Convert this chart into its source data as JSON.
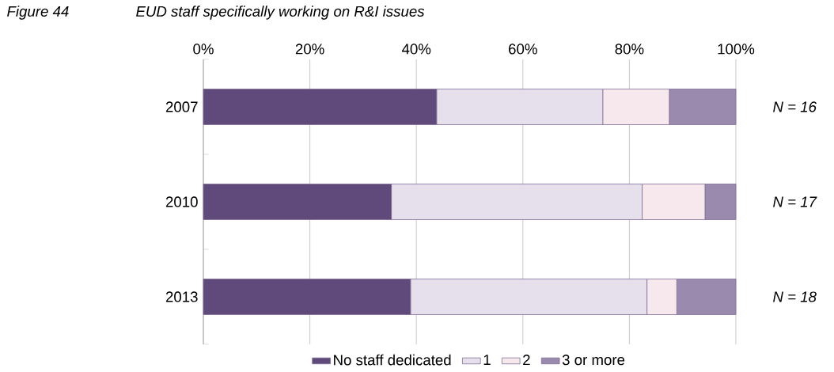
{
  "chart_data": {
    "type": "bar",
    "orientation": "horizontal",
    "stacked": true,
    "title": "Figure 44",
    "subtitle": "EUD staff specifically working on R&I issues",
    "categories": [
      "2007",
      "2010",
      "2013"
    ],
    "series": [
      {
        "name": "No staff dedicated",
        "color": "#604a7b",
        "values": [
          43.8,
          35.3,
          38.9
        ]
      },
      {
        "name": "1",
        "color": "#e6e0ec",
        "values": [
          31.2,
          47.1,
          44.4
        ]
      },
      {
        "name": "2",
        "color": "#f6e8ec",
        "values": [
          12.5,
          11.8,
          5.6
        ]
      },
      {
        "name": "3 or more",
        "color": "#9a8aae",
        "values": [
          12.5,
          5.8,
          11.1
        ]
      }
    ],
    "xlim": [
      0,
      100
    ],
    "xticks": [
      {
        "value": 0,
        "label": "0%"
      },
      {
        "value": 20,
        "label": "20%"
      },
      {
        "value": 40,
        "label": "40%"
      },
      {
        "value": 60,
        "label": "60%"
      },
      {
        "value": 80,
        "label": "80%"
      },
      {
        "value": 100,
        "label": "100%"
      }
    ],
    "grid": "x",
    "legend": "bottom",
    "annotations": [
      "N = 16",
      "N = 17",
      "N = 18"
    ]
  }
}
